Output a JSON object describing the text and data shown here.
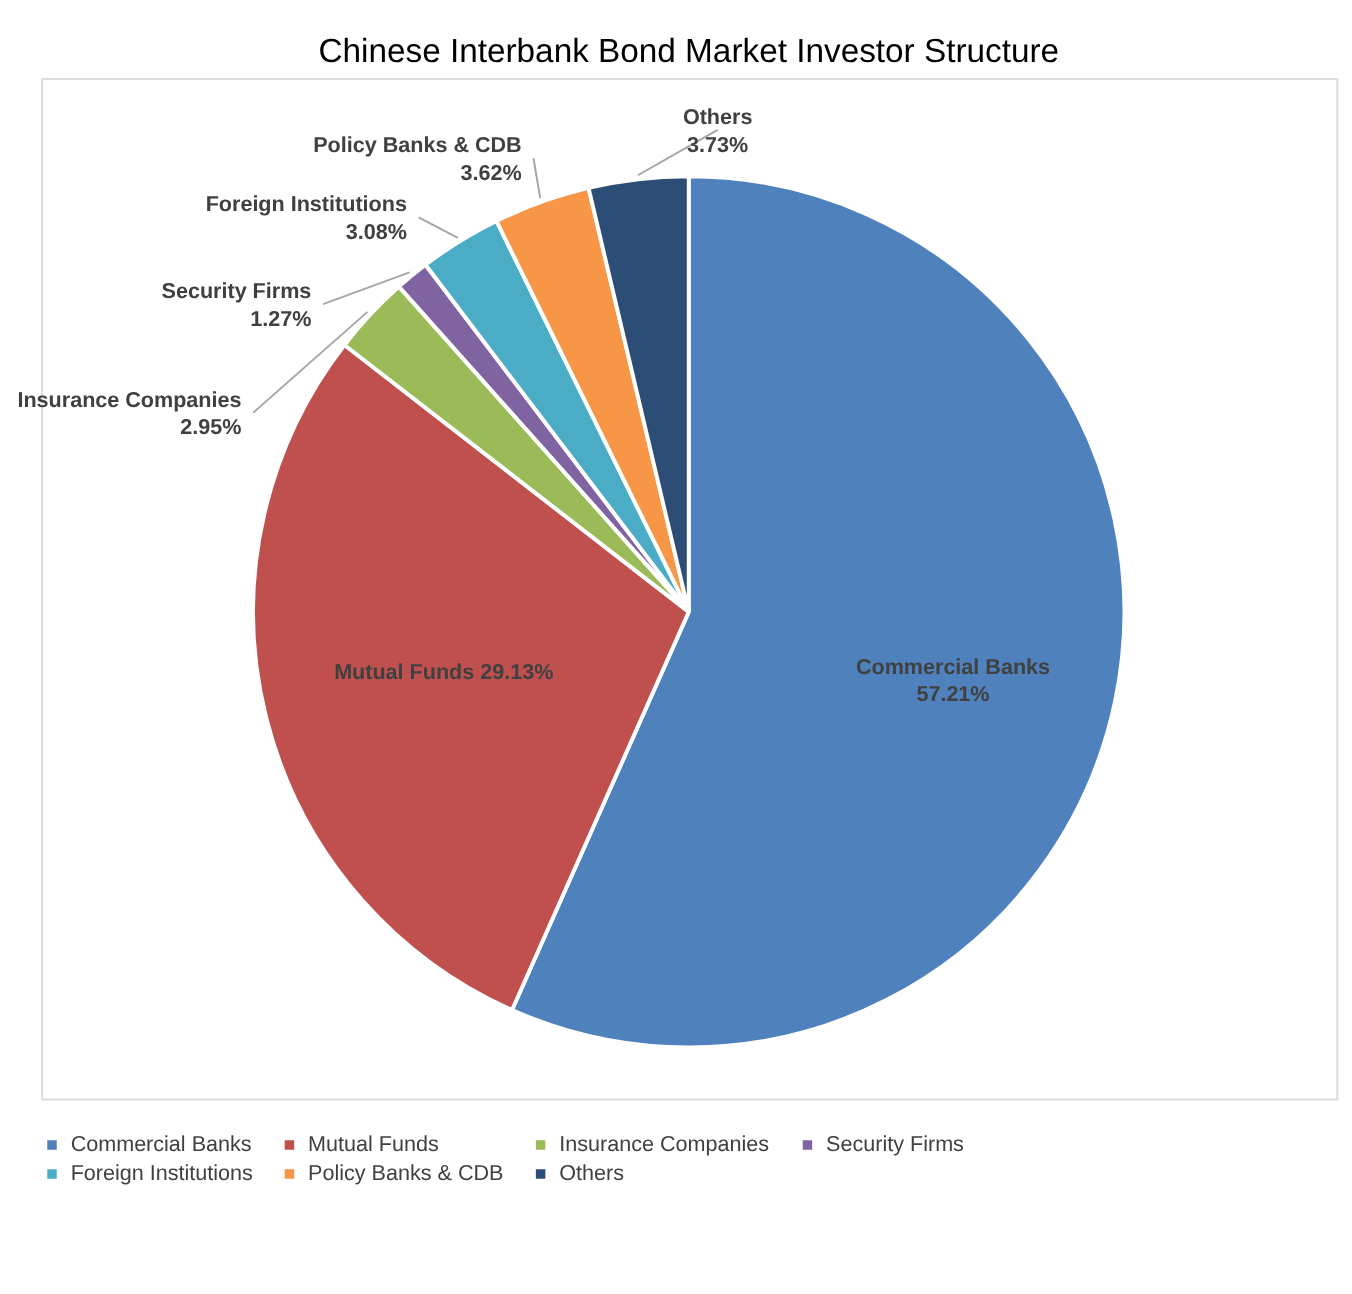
{
  "chart_data": {
    "type": "pie",
    "title": "Chinese Interbank Bond Market Investor Structure",
    "categories": [
      "Commercial Banks",
      "Mutual Funds",
      "Insurance Companies",
      "Security Firms",
      "Foreign Institutions",
      "Policy Banks & CDB",
      "Others"
    ],
    "values": [
      57.21,
      29.13,
      2.95,
      1.27,
      3.08,
      3.62,
      3.73
    ],
    "value_labels": [
      "57.21%",
      "29.13%",
      "2.95%",
      "1.27%",
      "3.08%",
      "3.62%",
      "3.73%"
    ],
    "colors": [
      "#4f81bd",
      "#c0504d",
      "#9bbb59",
      "#8064a2",
      "#4bacc6",
      "#f79646",
      "#2c4d75"
    ],
    "legend": "bottom"
  }
}
